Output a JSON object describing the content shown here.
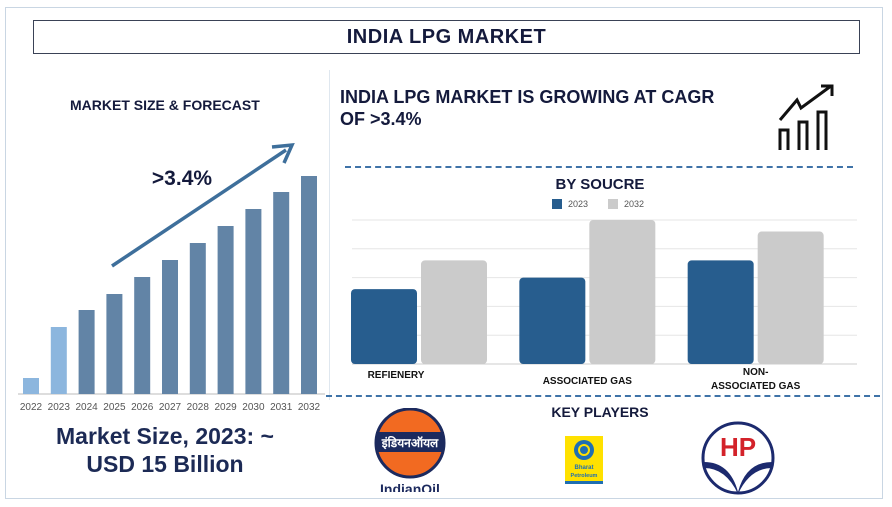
{
  "title": "INDIA LPG MARKET",
  "left": {
    "heading": "MARKET SIZE & FORECAST",
    "cagr_label": ">3.4%",
    "market_size_line1": "Market Size, 2023: ~",
    "market_size_line2": "USD 15 Billion"
  },
  "right": {
    "headline_line1": "INDIA LPG MARKET IS GROWING AT CAGR",
    "headline_line2": "OF >3.4%",
    "icon": "growth-chart-icon",
    "key_players_heading": "KEY PLAYERS",
    "key_players": [
      {
        "name": "IndianOil",
        "hindi": "इंडियनऑयल"
      },
      {
        "name": "Bharat Petroleum",
        "line1": "Bharat",
        "line2": "Petroleum"
      },
      {
        "name": "HP",
        "mark": "HP"
      }
    ]
  },
  "colors": {
    "navy": "#141a3c",
    "bar_history": "#8cb6de",
    "bar_forecast": "#6284a6",
    "arrow": "#3e6f9b",
    "series_2023": "#275d8e",
    "series_2032": "#cbcbcb"
  },
  "chart_data": [
    {
      "type": "bar",
      "title": "MARKET SIZE & FORECAST",
      "categories": [
        "2022",
        "2023",
        "2024",
        "2025",
        "2026",
        "2027",
        "2028",
        "2029",
        "2030",
        "2031",
        "2032"
      ],
      "values": [
        16,
        67,
        84,
        100,
        117,
        134,
        151,
        168,
        185,
        202,
        218
      ],
      "highlighted": [
        "2022",
        "2023"
      ],
      "annotation": ">3.4%",
      "grid": false,
      "ylim": [
        0,
        230
      ]
    },
    {
      "type": "bar",
      "title": "BY SOUCRE",
      "categories": [
        "REFIENERY",
        "ASSOCIATED GAS",
        "NON-ASSOCIATED GAS"
      ],
      "series": [
        {
          "name": "2023",
          "values": [
            2.6,
            3.0,
            3.6
          ]
        },
        {
          "name": "2032",
          "values": [
            3.6,
            5.0,
            4.6
          ]
        }
      ],
      "ylim": [
        0,
        5
      ],
      "grid": true,
      "legend": "top"
    }
  ]
}
